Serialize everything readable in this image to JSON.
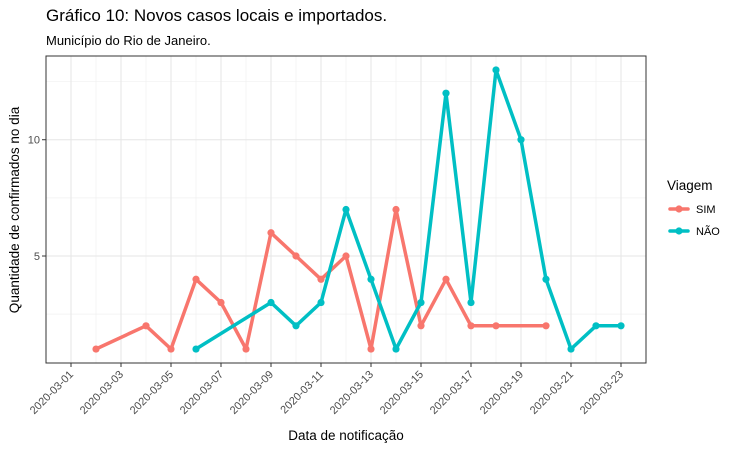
{
  "chart_data": {
    "type": "line",
    "title": "Gráfico 10: Novos casos locais e importados.",
    "subtitle": "Município do Rio de Janeiro.",
    "xlabel": "Data de notificação",
    "ylabel": "Quantidade de confirmados no dia",
    "x_ticks": [
      "2020-03-01",
      "2020-03-03",
      "2020-03-05",
      "2020-03-07",
      "2020-03-09",
      "2020-03-11",
      "2020-03-13",
      "2020-03-15",
      "2020-03-17",
      "2020-03-19",
      "2020-03-21",
      "2020-03-23"
    ],
    "y_ticks": [
      5,
      10
    ],
    "xlim": [
      "2020-02-29",
      "2020-03-24"
    ],
    "ylim": [
      0.4,
      13.6
    ],
    "grid": true,
    "legend": {
      "title": "Viagem",
      "position": "right"
    },
    "series": [
      {
        "name": "SIM",
        "color": "#F8766D",
        "x": [
          "2020-03-02",
          "2020-03-04",
          "2020-03-05",
          "2020-03-06",
          "2020-03-07",
          "2020-03-08",
          "2020-03-09",
          "2020-03-10",
          "2020-03-11",
          "2020-03-12",
          "2020-03-13",
          "2020-03-14",
          "2020-03-15",
          "2020-03-16",
          "2020-03-17",
          "2020-03-18",
          "2020-03-20"
        ],
        "values": [
          1,
          2,
          1,
          4,
          3,
          1,
          6,
          5,
          4,
          5,
          1,
          7,
          2,
          4,
          2,
          2,
          2
        ]
      },
      {
        "name": "NÃO",
        "color": "#00BFC4",
        "x": [
          "2020-03-06",
          "2020-03-09",
          "2020-03-10",
          "2020-03-11",
          "2020-03-12",
          "2020-03-13",
          "2020-03-14",
          "2020-03-15",
          "2020-03-16",
          "2020-03-17",
          "2020-03-18",
          "2020-03-19",
          "2020-03-20",
          "2020-03-21",
          "2020-03-22",
          "2020-03-23"
        ],
        "values": [
          1,
          3,
          2,
          3,
          7,
          4,
          1,
          3,
          12,
          3,
          13,
          10,
          4,
          1,
          2,
          2
        ]
      }
    ]
  }
}
